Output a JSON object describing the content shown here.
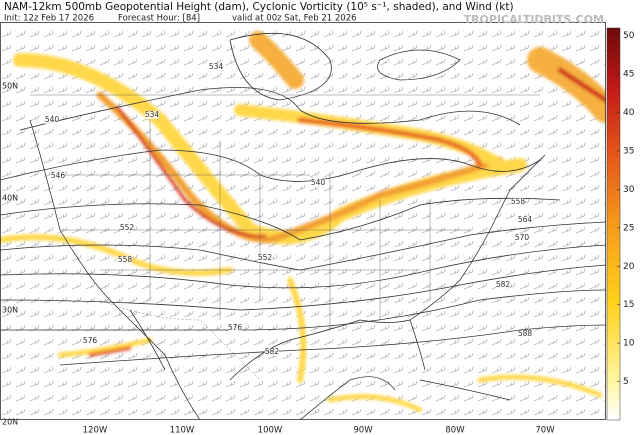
{
  "header": {
    "title": "NAM-12km 500mb Geopotential Height (dam), Cyclonic Vorticity (10⁵ s⁻¹, shaded), and Wind (kt)",
    "init": "Init: 12z Feb 17 2026",
    "forecast_hour": "Forecast Hour: [84]",
    "valid": "valid at 00z Sat, Feb 21 2026",
    "site": "TROPICALTIDBITS.COM"
  },
  "colorbar": {
    "range": [
      0,
      51
    ],
    "ticks": [
      5,
      10,
      15,
      20,
      25,
      30,
      35,
      40,
      45,
      50
    ]
  },
  "latitude_labels": [
    "50N",
    "40N",
    "30N",
    "20N"
  ],
  "longitude_labels": [
    "120W",
    "110W",
    "100W",
    "90W",
    "80W",
    "70W"
  ],
  "contour_labels": [
    "534",
    "534",
    "540",
    "540",
    "546",
    "552",
    "552",
    "558",
    "558",
    "564",
    "570",
    "576",
    "576",
    "582",
    "582",
    "588"
  ]
}
